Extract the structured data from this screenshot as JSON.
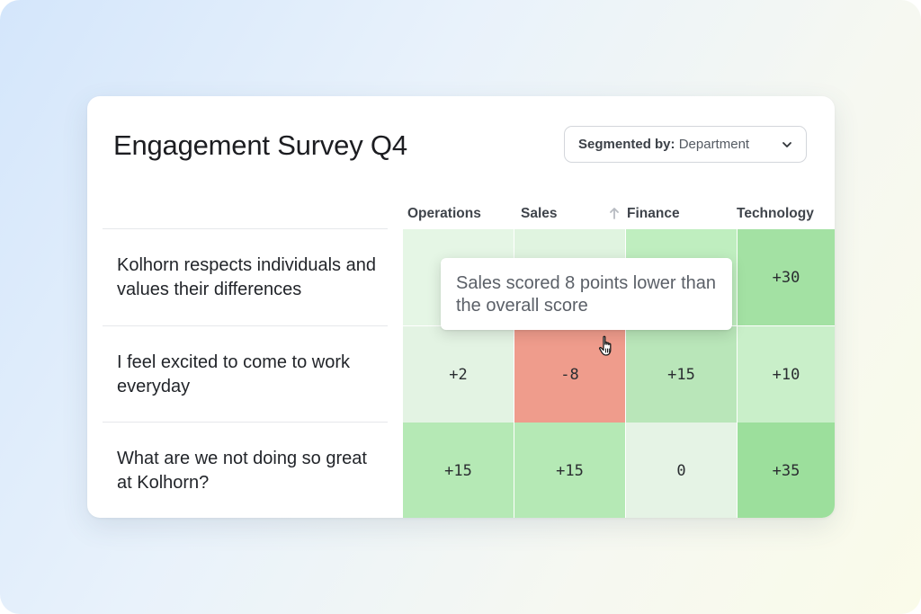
{
  "header": {
    "title": "Engagement Survey Q4",
    "segment": {
      "label": "Segmented by:",
      "value": "Department"
    }
  },
  "columns": [
    "Operations",
    "Sales",
    "Finance",
    "Technology"
  ],
  "sorted_column": "Finance",
  "rows": [
    {
      "question": "Kolhorn respects individuals and values their differences",
      "cells": [
        "",
        "",
        "",
        "+30"
      ]
    },
    {
      "question": "I feel excited to come to work everyday",
      "cells": [
        "+2",
        "-8",
        "+15",
        "+10"
      ]
    },
    {
      "question": "What are we not doing so great at Kolhorn?",
      "cells": [
        "+15",
        "+15",
        "0",
        "+35"
      ]
    }
  ],
  "tooltip": {
    "text": "Sales scored 8 points lower than the overall score"
  },
  "colors": {
    "positive_strong": "#9fe09f",
    "positive_medium": "#b4e8b4",
    "positive_light": "#cdefcd",
    "neutral": "#e6f4e6",
    "negative": "#ef9c8c",
    "text": "#1c1d21"
  },
  "icons": {
    "dropdown": "chevron-down-icon",
    "sort": "arrow-up-icon",
    "cursor": "hand-pointer-icon"
  }
}
